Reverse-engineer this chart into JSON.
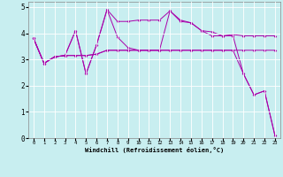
{
  "xlabel": "Windchill (Refroidissement éolien,°C)",
  "background_color": "#c8eef0",
  "line_color": "#aa00aa",
  "xlim": [
    -0.5,
    23.5
  ],
  "ylim": [
    0,
    5.2
  ],
  "xticks": [
    0,
    1,
    2,
    3,
    4,
    5,
    6,
    7,
    8,
    9,
    10,
    11,
    12,
    13,
    14,
    15,
    16,
    17,
    18,
    19,
    20,
    21,
    22,
    23
  ],
  "yticks": [
    0,
    1,
    2,
    3,
    4,
    5
  ],
  "series_a": [
    3.8,
    2.85,
    3.1,
    3.15,
    4.1,
    2.45,
    3.55,
    4.9,
    3.85,
    3.45,
    3.35,
    3.35,
    3.35,
    4.85,
    4.45,
    4.4,
    4.1,
    3.9,
    3.9,
    3.9,
    2.45,
    1.65,
    1.8,
    0.1
  ],
  "series_b": [
    3.8,
    2.85,
    3.1,
    3.15,
    4.1,
    2.45,
    3.55,
    4.9,
    4.45,
    4.45,
    4.5,
    4.5,
    4.5,
    4.85,
    4.5,
    4.4,
    4.1,
    4.05,
    3.9,
    3.95,
    3.9,
    3.9,
    3.9,
    3.9
  ],
  "series_c": [
    3.8,
    2.85,
    3.1,
    3.15,
    3.15,
    3.15,
    3.2,
    3.35,
    3.35,
    3.35,
    3.35,
    3.35,
    3.35,
    3.35,
    3.35,
    3.35,
    3.35,
    3.35,
    3.35,
    3.35,
    2.45,
    1.65,
    1.8,
    0.1
  ],
  "series_d": [
    3.8,
    2.85,
    3.1,
    3.15,
    3.15,
    3.15,
    3.2,
    3.35,
    3.35,
    3.35,
    3.35,
    3.35,
    3.35,
    3.35,
    3.35,
    3.35,
    3.35,
    3.35,
    3.35,
    3.35,
    3.35,
    3.35,
    3.35,
    3.35
  ]
}
